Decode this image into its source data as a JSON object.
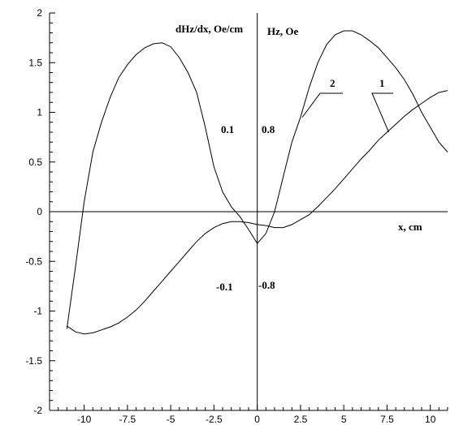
{
  "chart_data": {
    "type": "line",
    "xlim": [
      -12,
      11
    ],
    "ylim": [
      -2,
      2
    ],
    "x_ticks": [
      "-10",
      "-7.5",
      "-5",
      "-2.5",
      "0",
      "2.5",
      "5",
      "7.5",
      "10"
    ],
    "y_ticks": [
      "2",
      "1.5",
      "1",
      "0.5",
      "0",
      "-0.5",
      "-1",
      "-1.5",
      "-2"
    ],
    "grid": false,
    "annotations": {
      "left_axis_label": "dHz/dx, Oe/cm",
      "right_axis_label": "Hz, Oe",
      "x_axis_label": "x, cm",
      "left_upper": "0.1",
      "left_lower": "-0.1",
      "right_upper": "0.8",
      "right_lower": "-0.8"
    },
    "series": [
      {
        "name": "2",
        "x": [
          -11,
          -10.5,
          -10,
          -9.5,
          -9,
          -8.5,
          -8,
          -7.5,
          -7,
          -6.5,
          -6,
          -5.5,
          -5,
          -4.5,
          -4,
          -3.5,
          -3,
          -2.5,
          -2,
          -1.5,
          -1,
          -0.5,
          0,
          0.5,
          1,
          1.5,
          2,
          2.5,
          3,
          3.5,
          4,
          4.5,
          5,
          5.5,
          6,
          6.5,
          7,
          7.5,
          8,
          8.5,
          9,
          9.5,
          10,
          10.5,
          11
        ],
        "y": [
          -1.18,
          -0.55,
          0.1,
          0.6,
          0.9,
          1.15,
          1.35,
          1.48,
          1.58,
          1.65,
          1.69,
          1.7,
          1.66,
          1.55,
          1.4,
          1.2,
          0.85,
          0.45,
          0.2,
          0.05,
          -0.05,
          -0.18,
          -0.32,
          -0.22,
          0.0,
          0.35,
          0.7,
          0.95,
          1.25,
          1.5,
          1.68,
          1.78,
          1.82,
          1.82,
          1.78,
          1.72,
          1.65,
          1.55,
          1.45,
          1.33,
          1.18,
          1.0,
          0.85,
          0.7,
          0.6
        ]
      },
      {
        "name": "1",
        "x": [
          -11,
          -10.5,
          -10,
          -9.5,
          -9,
          -8.5,
          -8,
          -7.5,
          -7,
          -6.5,
          -6,
          -5.5,
          -5,
          -4.5,
          -4,
          -3.5,
          -3,
          -2.5,
          -2,
          -1.5,
          -1,
          -0.5,
          0,
          0.5,
          1,
          1.5,
          2,
          2.5,
          3,
          3.5,
          4,
          4.5,
          5,
          5.5,
          6,
          6.5,
          7,
          7.5,
          8,
          8.5,
          9,
          9.5,
          10,
          10.5,
          11
        ],
        "y": [
          -1.15,
          -1.21,
          -1.23,
          -1.22,
          -1.19,
          -1.16,
          -1.12,
          -1.06,
          -0.99,
          -0.9,
          -0.8,
          -0.7,
          -0.6,
          -0.5,
          -0.4,
          -0.3,
          -0.22,
          -0.16,
          -0.12,
          -0.1,
          -0.1,
          -0.11,
          -0.13,
          -0.14,
          -0.16,
          -0.16,
          -0.13,
          -0.08,
          -0.03,
          0.05,
          0.14,
          0.23,
          0.33,
          0.43,
          0.53,
          0.62,
          0.72,
          0.8,
          0.88,
          0.96,
          1.03,
          1.09,
          1.15,
          1.2,
          1.22
        ]
      }
    ]
  }
}
